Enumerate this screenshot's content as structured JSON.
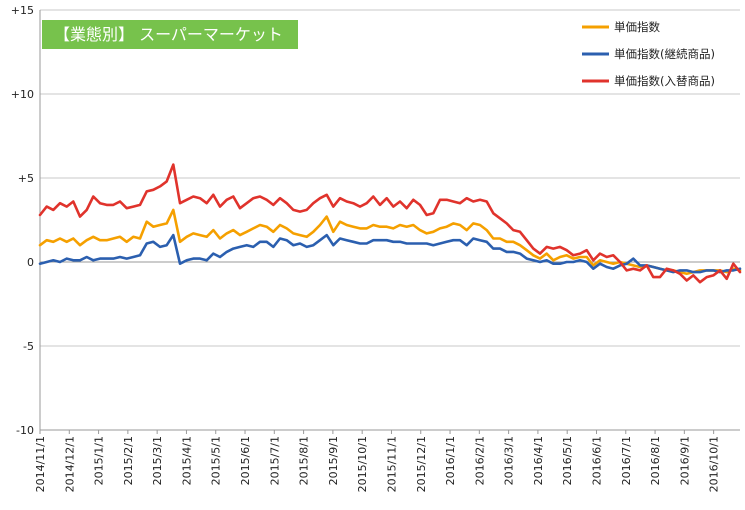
{
  "chart_data": {
    "type": "line",
    "title": "【業態別】 スーパーマーケット",
    "xlabel": "",
    "ylabel": "",
    "ylim": [
      -10,
      15
    ],
    "y_ticks": [
      {
        "value": 15,
        "label": "+15"
      },
      {
        "value": 10,
        "label": "+10"
      },
      {
        "value": 5,
        "label": "+5"
      },
      {
        "value": 0,
        "label": "0"
      },
      {
        "value": -5,
        "label": "-5"
      },
      {
        "value": -10,
        "label": "-10"
      }
    ],
    "x_tick_labels": [
      "2014/11/1",
      "2014/12/1",
      "2015/1/1",
      "2015/2/1",
      "2015/3/1",
      "2015/4/1",
      "2015/5/1",
      "2015/6/1",
      "2015/7/1",
      "2015/8/1",
      "2015/9/1",
      "2015/10/1",
      "2015/11/1",
      "2015/12/1",
      "2016/1/1",
      "2016/2/1",
      "2016/3/1",
      "2016/4/1",
      "2016/5/1",
      "2016/6/1",
      "2016/7/1",
      "2016/8/1",
      "2016/9/1",
      "2016/10/1"
    ],
    "x_start": "2014/11/1",
    "x_interval": "week",
    "grid": "horizontal",
    "legend_position": "top-right",
    "series": [
      {
        "name": "単価指数",
        "color": "#f5a000",
        "values": [
          1.0,
          1.3,
          1.2,
          1.4,
          1.2,
          1.4,
          1.0,
          1.3,
          1.5,
          1.3,
          1.3,
          1.4,
          1.5,
          1.2,
          1.5,
          1.4,
          2.4,
          2.1,
          2.2,
          2.3,
          3.1,
          1.2,
          1.5,
          1.7,
          1.6,
          1.5,
          1.9,
          1.4,
          1.7,
          1.9,
          1.6,
          1.8,
          2.0,
          2.2,
          2.1,
          1.8,
          2.2,
          2.0,
          1.7,
          1.6,
          1.5,
          1.8,
          2.2,
          2.7,
          1.8,
          2.4,
          2.2,
          2.1,
          2.0,
          2.0,
          2.2,
          2.1,
          2.1,
          2.0,
          2.2,
          2.1,
          2.2,
          1.9,
          1.7,
          1.8,
          2.0,
          2.1,
          2.3,
          2.2,
          1.9,
          2.3,
          2.2,
          1.9,
          1.4,
          1.4,
          1.2,
          1.2,
          1.0,
          0.7,
          0.4,
          0.2,
          0.5,
          0.1,
          0.3,
          0.4,
          0.2,
          0.3,
          0.3,
          -0.2,
          0.1,
          0.0,
          -0.1,
          0.0,
          -0.1,
          -0.2,
          -0.3,
          -0.2,
          -0.3,
          -0.4,
          -0.5,
          -0.5,
          -0.6,
          -0.7,
          -0.6,
          -0.5,
          -0.5,
          -0.5,
          -0.5,
          -0.6,
          -0.4,
          -0.5
        ]
      },
      {
        "name": "単価指数(継続商品)",
        "color": "#2b5faf",
        "values": [
          -0.1,
          0.0,
          0.1,
          0.0,
          0.2,
          0.1,
          0.1,
          0.3,
          0.1,
          0.2,
          0.2,
          0.2,
          0.3,
          0.2,
          0.3,
          0.4,
          1.1,
          1.2,
          0.9,
          1.0,
          1.6,
          -0.1,
          0.1,
          0.2,
          0.2,
          0.1,
          0.5,
          0.3,
          0.6,
          0.8,
          0.9,
          1.0,
          0.9,
          1.2,
          1.2,
          0.9,
          1.4,
          1.3,
          1.0,
          1.1,
          0.9,
          1.0,
          1.3,
          1.6,
          1.0,
          1.4,
          1.3,
          1.2,
          1.1,
          1.1,
          1.3,
          1.3,
          1.3,
          1.2,
          1.2,
          1.1,
          1.1,
          1.1,
          1.1,
          1.0,
          1.1,
          1.2,
          1.3,
          1.3,
          1.0,
          1.4,
          1.3,
          1.2,
          0.8,
          0.8,
          0.6,
          0.6,
          0.5,
          0.2,
          0.1,
          0.0,
          0.1,
          -0.1,
          -0.1,
          0.0,
          0.0,
          0.1,
          0.0,
          -0.4,
          -0.1,
          -0.3,
          -0.4,
          -0.2,
          -0.1,
          0.2,
          -0.2,
          -0.2,
          -0.3,
          -0.4,
          -0.5,
          -0.6,
          -0.5,
          -0.5,
          -0.6,
          -0.6,
          -0.5,
          -0.5,
          -0.6,
          -0.5,
          -0.5,
          -0.4
        ]
      },
      {
        "name": "単価指数(入替商品)",
        "color": "#e0332c",
        "values": [
          2.8,
          3.3,
          3.1,
          3.5,
          3.3,
          3.6,
          2.7,
          3.1,
          3.9,
          3.5,
          3.4,
          3.4,
          3.6,
          3.2,
          3.3,
          3.4,
          4.2,
          4.3,
          4.5,
          4.8,
          5.8,
          3.5,
          3.7,
          3.9,
          3.8,
          3.5,
          4.0,
          3.3,
          3.7,
          3.9,
          3.2,
          3.5,
          3.8,
          3.9,
          3.7,
          3.4,
          3.8,
          3.5,
          3.1,
          3.0,
          3.1,
          3.5,
          3.8,
          4.0,
          3.3,
          3.8,
          3.6,
          3.5,
          3.3,
          3.5,
          3.9,
          3.4,
          3.8,
          3.3,
          3.6,
          3.2,
          3.7,
          3.4,
          2.8,
          2.9,
          3.7,
          3.7,
          3.6,
          3.5,
          3.8,
          3.6,
          3.7,
          3.6,
          2.9,
          2.6,
          2.3,
          1.9,
          1.8,
          1.3,
          0.8,
          0.5,
          0.9,
          0.8,
          0.9,
          0.7,
          0.4,
          0.5,
          0.7,
          0.1,
          0.5,
          0.3,
          0.4,
          0.0,
          -0.5,
          -0.4,
          -0.5,
          -0.2,
          -0.9,
          -0.9,
          -0.4,
          -0.5,
          -0.7,
          -1.1,
          -0.8,
          -1.2,
          -0.9,
          -0.8,
          -0.5,
          -1.0,
          -0.1,
          -0.6
        ]
      }
    ]
  }
}
